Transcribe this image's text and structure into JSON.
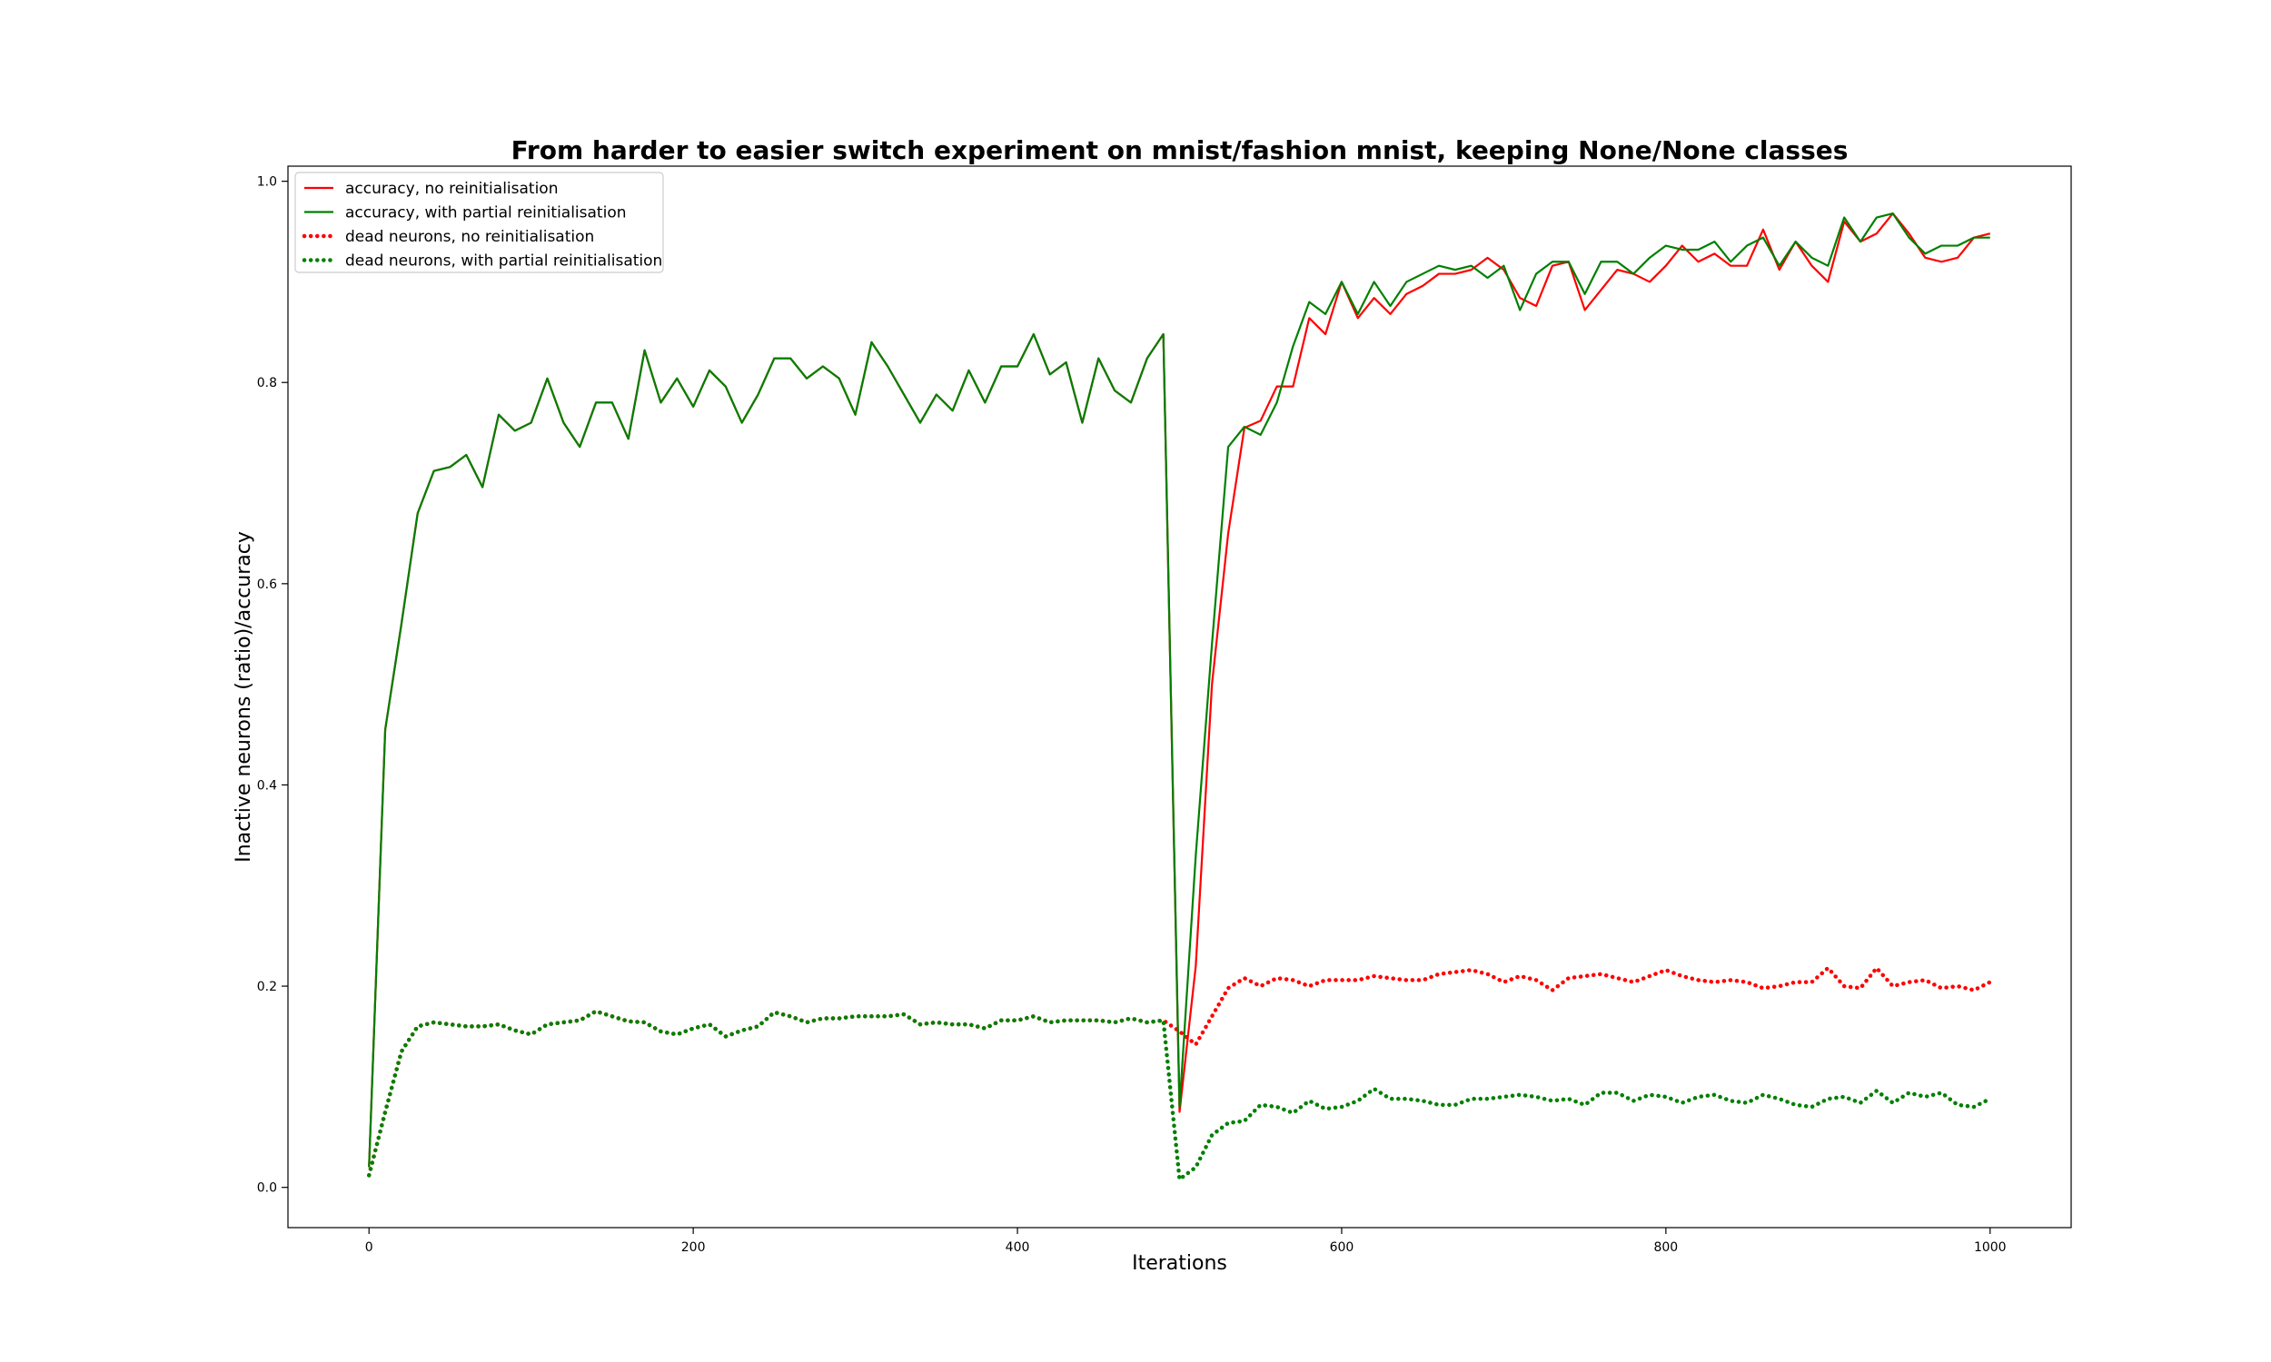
{
  "chart_data": {
    "type": "line",
    "title": "From harder to easier switch experiment on mnist/fashion mnist, keeping None/None classes",
    "xlabel": "Iterations",
    "ylabel": "Inactive neurons (ratio)/accuracy",
    "xlim": [
      -50,
      1050
    ],
    "ylim": [
      -0.04,
      1.015
    ],
    "xticks": [
      0,
      200,
      400,
      600,
      800,
      1000
    ],
    "yticks": [
      0.0,
      0.2,
      0.4,
      0.6,
      0.8,
      1.0
    ],
    "xtick_labels": [
      "0",
      "200",
      "400",
      "600",
      "800",
      "1000"
    ],
    "ytick_labels": [
      "0.0",
      "0.2",
      "0.4",
      "0.6",
      "0.8",
      "1.0"
    ],
    "grid": false,
    "legend_position": "top-left",
    "x": [
      0,
      10,
      20,
      30,
      40,
      50,
      60,
      70,
      80,
      90,
      100,
      110,
      120,
      130,
      140,
      150,
      160,
      170,
      180,
      190,
      200,
      210,
      220,
      230,
      240,
      250,
      260,
      270,
      280,
      290,
      300,
      310,
      320,
      330,
      340,
      350,
      360,
      370,
      380,
      390,
      400,
      410,
      420,
      430,
      440,
      450,
      460,
      470,
      480,
      490,
      500,
      510,
      520,
      530,
      540,
      550,
      560,
      570,
      580,
      590,
      600,
      610,
      620,
      630,
      640,
      650,
      660,
      670,
      680,
      690,
      700,
      710,
      720,
      730,
      740,
      750,
      760,
      770,
      780,
      790,
      800,
      810,
      820,
      830,
      840,
      850,
      860,
      870,
      880,
      890,
      900,
      910,
      920,
      930,
      940,
      950,
      960,
      970,
      980,
      990,
      1000
    ],
    "series": [
      {
        "name": "accuracy, no reinitialisation",
        "color": "#ff0000",
        "style": "solid",
        "values": [
          0.02,
          0.455,
          0.56,
          0.67,
          0.712,
          0.716,
          0.728,
          0.696,
          0.768,
          0.752,
          0.76,
          0.804,
          0.76,
          0.736,
          0.78,
          0.78,
          0.744,
          0.832,
          0.78,
          0.804,
          0.776,
          0.812,
          0.796,
          0.76,
          0.788,
          0.824,
          0.824,
          0.804,
          0.816,
          0.804,
          0.768,
          0.84,
          0.816,
          0.788,
          0.76,
          0.788,
          0.772,
          0.812,
          0.78,
          0.816,
          0.816,
          0.848,
          0.808,
          0.82,
          0.76,
          0.824,
          0.792,
          0.78,
          0.824,
          0.848,
          0.075,
          0.22,
          0.5,
          0.65,
          0.755,
          0.762,
          0.796,
          0.796,
          0.864,
          0.848,
          0.9,
          0.864,
          0.884,
          0.868,
          0.888,
          0.896,
          0.908,
          0.908,
          0.912,
          0.924,
          0.912,
          0.884,
          0.876,
          0.916,
          0.92,
          0.872,
          0.892,
          0.912,
          0.908,
          0.9,
          0.916,
          0.936,
          0.92,
          0.928,
          0.916,
          0.916,
          0.952,
          0.912,
          0.94,
          0.916,
          0.9,
          0.96,
          0.94,
          0.948,
          0.968,
          0.948,
          0.924,
          0.92,
          0.924,
          0.944,
          0.948
        ]
      },
      {
        "name": "accuracy, with partial reinitialisation",
        "color": "#008000",
        "style": "solid",
        "values": [
          0.02,
          0.455,
          0.56,
          0.67,
          0.712,
          0.716,
          0.728,
          0.696,
          0.768,
          0.752,
          0.76,
          0.804,
          0.76,
          0.736,
          0.78,
          0.78,
          0.744,
          0.832,
          0.78,
          0.804,
          0.776,
          0.812,
          0.796,
          0.76,
          0.788,
          0.824,
          0.824,
          0.804,
          0.816,
          0.804,
          0.768,
          0.84,
          0.816,
          0.788,
          0.76,
          0.788,
          0.772,
          0.812,
          0.78,
          0.816,
          0.816,
          0.848,
          0.808,
          0.82,
          0.76,
          0.824,
          0.792,
          0.78,
          0.824,
          0.848,
          0.08,
          0.33,
          0.54,
          0.736,
          0.756,
          0.748,
          0.78,
          0.836,
          0.88,
          0.868,
          0.9,
          0.868,
          0.9,
          0.876,
          0.9,
          0.908,
          0.916,
          0.912,
          0.916,
          0.904,
          0.916,
          0.872,
          0.908,
          0.92,
          0.92,
          0.888,
          0.92,
          0.92,
          0.908,
          0.924,
          0.936,
          0.932,
          0.932,
          0.94,
          0.92,
          0.936,
          0.944,
          0.916,
          0.94,
          0.924,
          0.916,
          0.964,
          0.94,
          0.964,
          0.968,
          0.944,
          0.928,
          0.936,
          0.936,
          0.944,
          0.944
        ]
      },
      {
        "name": "dead neurons, no reinitialisation",
        "color": "#ff0000",
        "style": "dotted",
        "values": [
          0.012,
          0.075,
          0.135,
          0.16,
          0.164,
          0.162,
          0.16,
          0.16,
          0.162,
          0.156,
          0.152,
          0.162,
          0.164,
          0.166,
          0.175,
          0.17,
          0.165,
          0.164,
          0.155,
          0.152,
          0.158,
          0.162,
          0.15,
          0.156,
          0.16,
          0.174,
          0.17,
          0.164,
          0.168,
          0.168,
          0.17,
          0.17,
          0.17,
          0.172,
          0.162,
          0.164,
          0.162,
          0.162,
          0.158,
          0.166,
          0.166,
          0.17,
          0.164,
          0.166,
          0.166,
          0.166,
          0.164,
          0.168,
          0.164,
          0.166,
          0.155,
          0.142,
          0.17,
          0.198,
          0.208,
          0.2,
          0.208,
          0.206,
          0.2,
          0.206,
          0.206,
          0.206,
          0.21,
          0.208,
          0.206,
          0.206,
          0.212,
          0.214,
          0.216,
          0.212,
          0.204,
          0.21,
          0.206,
          0.196,
          0.208,
          0.21,
          0.212,
          0.208,
          0.204,
          0.21,
          0.216,
          0.21,
          0.206,
          0.204,
          0.206,
          0.204,
          0.198,
          0.2,
          0.204,
          0.204,
          0.218,
          0.2,
          0.198,
          0.218,
          0.2,
          0.204,
          0.206,
          0.198,
          0.2,
          0.196,
          0.204
        ]
      },
      {
        "name": "dead neurons, with partial reinitialisation",
        "color": "#008000",
        "style": "dotted",
        "values": [
          0.012,
          0.075,
          0.135,
          0.16,
          0.164,
          0.162,
          0.16,
          0.16,
          0.162,
          0.156,
          0.152,
          0.162,
          0.164,
          0.166,
          0.175,
          0.17,
          0.165,
          0.164,
          0.155,
          0.152,
          0.158,
          0.162,
          0.15,
          0.156,
          0.16,
          0.174,
          0.17,
          0.164,
          0.168,
          0.168,
          0.17,
          0.17,
          0.17,
          0.172,
          0.162,
          0.164,
          0.162,
          0.162,
          0.158,
          0.166,
          0.166,
          0.17,
          0.164,
          0.166,
          0.166,
          0.166,
          0.164,
          0.168,
          0.164,
          0.166,
          0.008,
          0.02,
          0.052,
          0.064,
          0.066,
          0.082,
          0.08,
          0.074,
          0.086,
          0.078,
          0.08,
          0.086,
          0.098,
          0.088,
          0.088,
          0.086,
          0.082,
          0.082,
          0.088,
          0.088,
          0.09,
          0.092,
          0.09,
          0.086,
          0.088,
          0.082,
          0.094,
          0.094,
          0.086,
          0.092,
          0.09,
          0.084,
          0.09,
          0.092,
          0.086,
          0.084,
          0.092,
          0.088,
          0.082,
          0.08,
          0.088,
          0.09,
          0.084,
          0.096,
          0.084,
          0.094,
          0.09,
          0.094,
          0.082,
          0.08,
          0.088
        ]
      }
    ]
  }
}
